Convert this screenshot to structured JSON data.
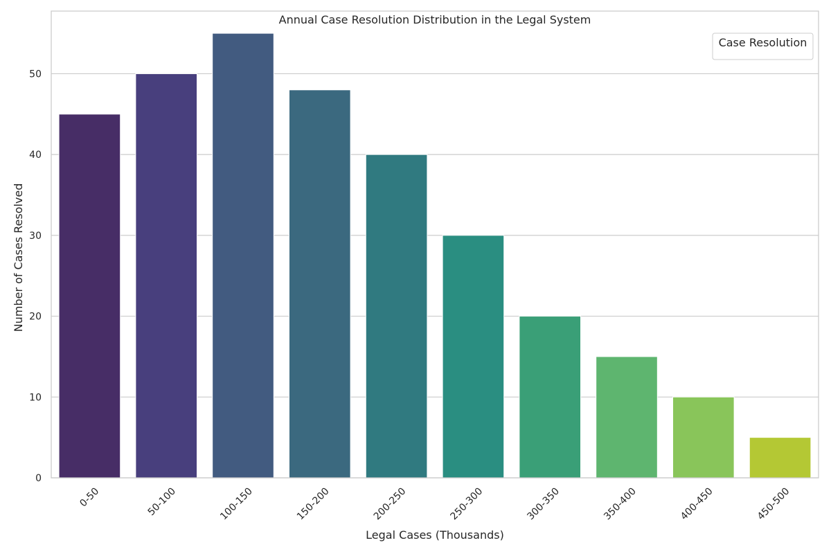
{
  "chart_data": {
    "type": "bar",
    "title": "Annual Case Resolution Distribution in the Legal System",
    "xlabel": "Legal Cases (Thousands)",
    "ylabel": "Number of Cases Resolved",
    "categories": [
      "0-50",
      "50-100",
      "100-150",
      "150-200",
      "200-250",
      "250-300",
      "300-350",
      "350-400",
      "400-450",
      "450-500"
    ],
    "values": [
      45,
      50,
      55,
      48,
      40,
      30,
      20,
      15,
      10,
      5
    ],
    "ylim": [
      0,
      57.75
    ],
    "yticks": [
      0,
      10,
      20,
      30,
      40,
      50
    ],
    "grid": true,
    "legend": {
      "title": "Case Resolution",
      "placement": "top-right"
    },
    "colors": [
      "#472d66",
      "#483f7d",
      "#425b80",
      "#3b697f",
      "#307a80",
      "#2a8e81",
      "#3a9f77",
      "#5eb56f",
      "#89c55a",
      "#b4c834"
    ]
  }
}
